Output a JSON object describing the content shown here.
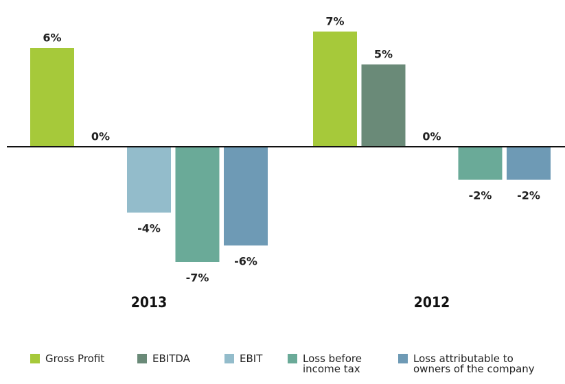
{
  "chart_data": {
    "type": "bar",
    "categories": [
      "2013",
      "2012"
    ],
    "series": [
      {
        "name": "Gross Profit",
        "color": "#a6c93a",
        "values": [
          6,
          7
        ],
        "value_labels": [
          "6%",
          "7%"
        ]
      },
      {
        "name": "EBITDA",
        "color": "#6a8a78",
        "values": [
          0,
          5
        ],
        "value_labels": [
          "0%",
          "5%"
        ]
      },
      {
        "name": "EBIT",
        "color": "#93bccb",
        "values": [
          -4,
          0
        ],
        "value_labels": [
          "-4%",
          "0%"
        ]
      },
      {
        "name": "Loss before income tax",
        "color": "#6aaa98",
        "values": [
          -7,
          -2
        ],
        "value_labels": [
          "-7%",
          "-2%"
        ]
      },
      {
        "name": "Loss attributable to owners of the company",
        "color": "#6e9ab5",
        "values": [
          -6,
          -2
        ],
        "value_labels": [
          "-6%",
          "-2%"
        ]
      }
    ],
    "ylim": [
      -8,
      9
    ],
    "grid": false
  }
}
